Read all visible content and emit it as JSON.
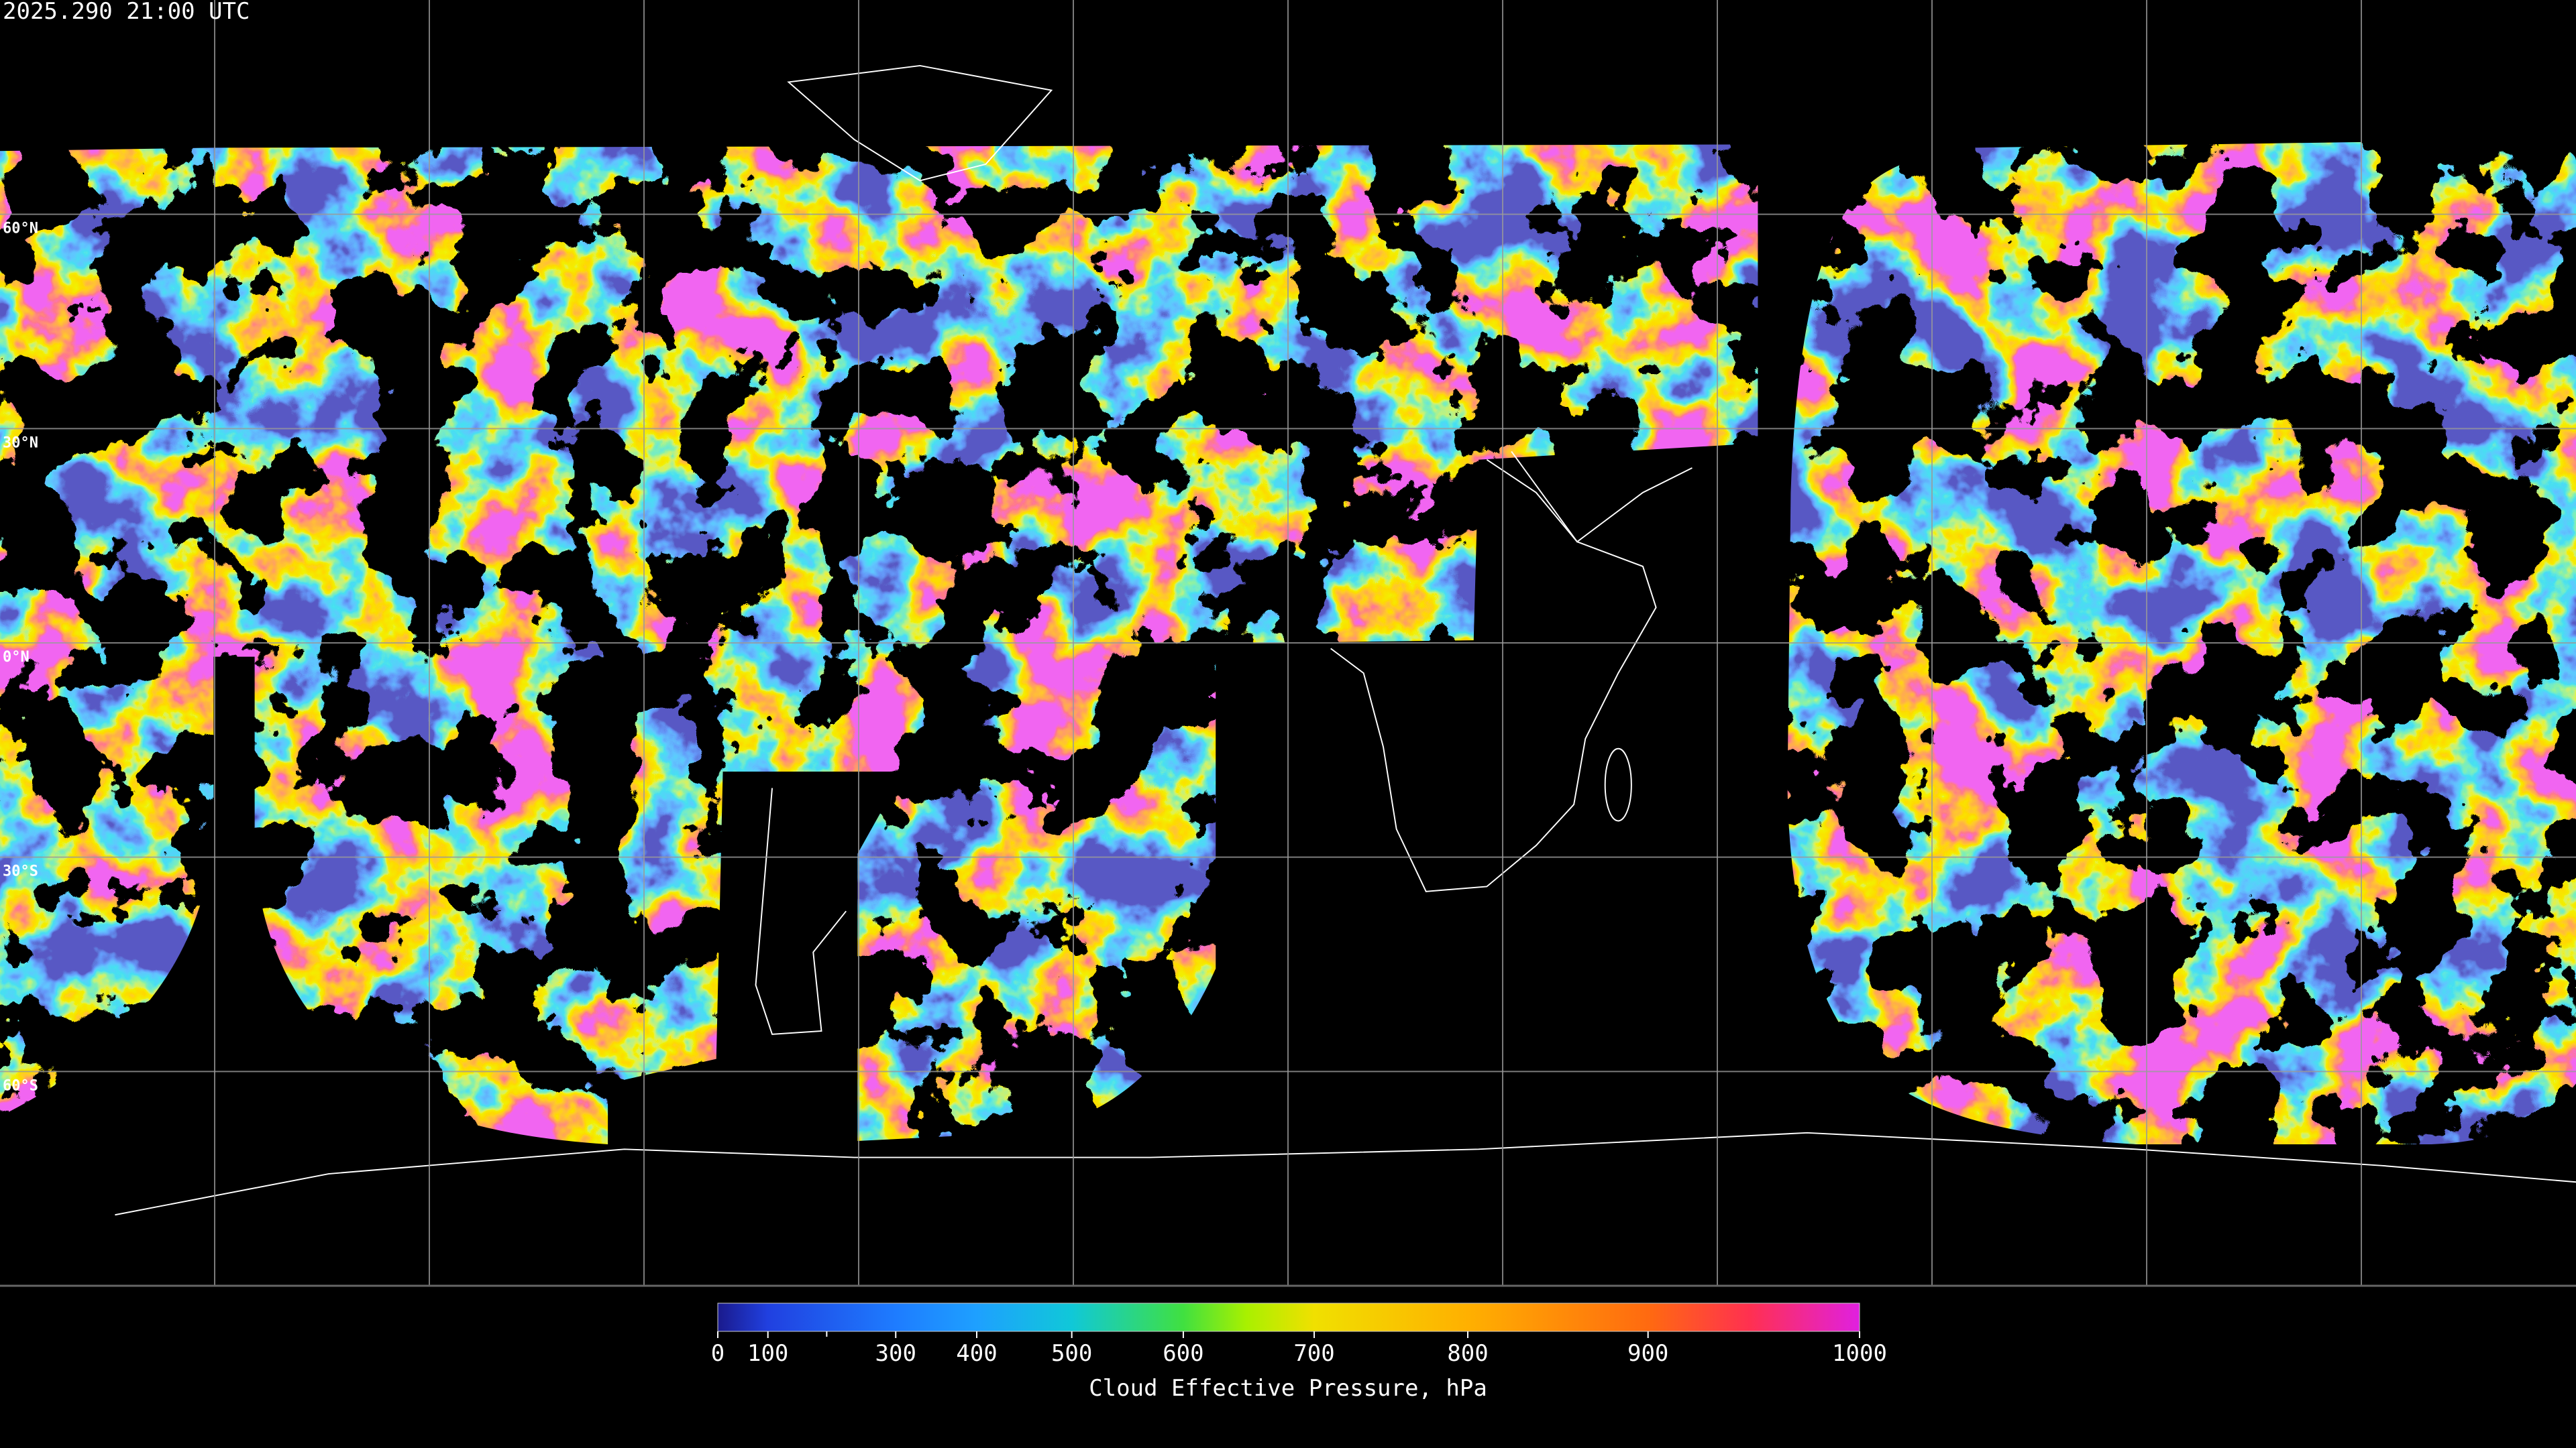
{
  "header": {
    "timestamp": "2025.290 21:00 UTC"
  },
  "map": {
    "type": "map",
    "projection": "equirectangular",
    "lat_ticks": [
      {
        "value": 60,
        "label": "60°N"
      },
      {
        "value": 30,
        "label": "30°N"
      },
      {
        "value": 0,
        "label": "0°N"
      },
      {
        "value": -30,
        "label": "30°S"
      },
      {
        "value": -60,
        "label": "60°S"
      }
    ],
    "grid": true,
    "grid_color": "#9a9a9a"
  },
  "colorbar": {
    "label": "Cloud Effective Pressure, hPa",
    "range": [
      0,
      1000
    ],
    "scale": "exponential",
    "ticks": [
      0,
      100,
      300,
      400,
      500,
      600,
      700,
      800,
      900,
      1000
    ],
    "minor_ticks": [
      200
    ],
    "stops": [
      {
        "value": 0,
        "color": "#1a1a8c"
      },
      {
        "value": 100,
        "color": "#2040e0"
      },
      {
        "value": 300,
        "color": "#1e7cff"
      },
      {
        "value": 400,
        "color": "#1ea0ff"
      },
      {
        "value": 500,
        "color": "#10c8d8"
      },
      {
        "value": 600,
        "color": "#40e040"
      },
      {
        "value": 650,
        "color": "#a8f000"
      },
      {
        "value": 700,
        "color": "#f0e000"
      },
      {
        "value": 800,
        "color": "#ffb000"
      },
      {
        "value": 900,
        "color": "#ff6a10"
      },
      {
        "value": 950,
        "color": "#ff3050"
      },
      {
        "value": 1000,
        "color": "#e020e0"
      }
    ]
  }
}
